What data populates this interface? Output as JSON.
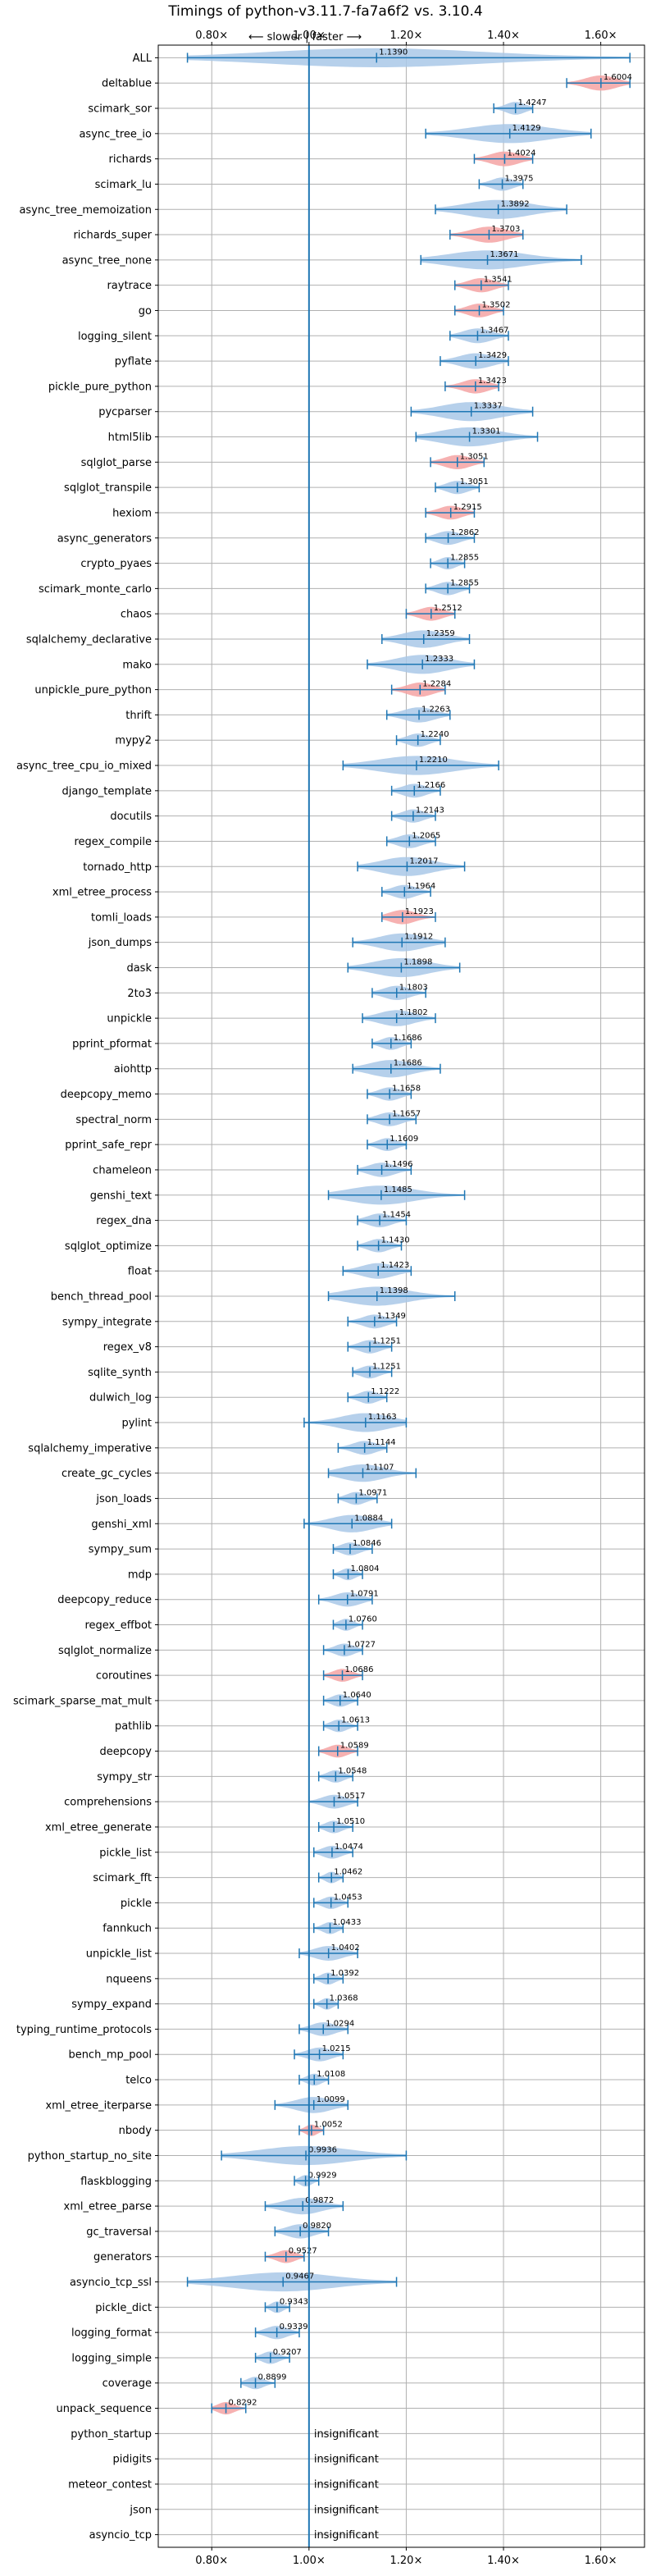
{
  "chart_data": {
    "type": "violin",
    "title": "Timings of python-v3.11.7-fa7a6f2 vs. 3.10.4",
    "direction_label": "⟵ slower | faster ⟶",
    "xlim": [
      0.69,
      1.69
    ],
    "x_ticks": [
      0.8,
      1.0,
      1.2,
      1.4,
      1.6
    ],
    "x_tick_labels": [
      "0.80×",
      "1.00×",
      "1.20×",
      "1.40×",
      "1.60×"
    ],
    "reference_line": 1.0,
    "grid": true,
    "insignificant_label": "insignificant",
    "colors": {
      "normal_fill": "#a9c8e8",
      "highlight_fill": "#f4a3a3",
      "line": "#1f77b4"
    },
    "benchmarks": [
      {
        "name": "ALL",
        "value": 1.139,
        "label": "1.1390",
        "lo": 0.75,
        "hi": 1.66,
        "hl": false
      },
      {
        "name": "deltablue",
        "value": 1.6004,
        "label": "1.6004",
        "lo": 1.53,
        "hi": 1.66,
        "hl": true
      },
      {
        "name": "scimark_sor",
        "value": 1.4247,
        "label": "1.4247",
        "lo": 1.38,
        "hi": 1.46,
        "hl": false
      },
      {
        "name": "async_tree_io",
        "value": 1.4129,
        "label": "1.4129",
        "lo": 1.24,
        "hi": 1.58,
        "hl": false
      },
      {
        "name": "richards",
        "value": 1.4024,
        "label": "1.4024",
        "lo": 1.34,
        "hi": 1.46,
        "hl": true
      },
      {
        "name": "scimark_lu",
        "value": 1.3975,
        "label": "1.3975",
        "lo": 1.35,
        "hi": 1.44,
        "hl": false
      },
      {
        "name": "async_tree_memoization",
        "value": 1.3892,
        "label": "1.3892",
        "lo": 1.26,
        "hi": 1.53,
        "hl": false
      },
      {
        "name": "richards_super",
        "value": 1.3703,
        "label": "1.3703",
        "lo": 1.29,
        "hi": 1.44,
        "hl": true
      },
      {
        "name": "async_tree_none",
        "value": 1.3671,
        "label": "1.3671",
        "lo": 1.23,
        "hi": 1.56,
        "hl": false
      },
      {
        "name": "raytrace",
        "value": 1.3541,
        "label": "1.3541",
        "lo": 1.3,
        "hi": 1.41,
        "hl": true
      },
      {
        "name": "go",
        "value": 1.3502,
        "label": "1.3502",
        "lo": 1.3,
        "hi": 1.4,
        "hl": true
      },
      {
        "name": "logging_silent",
        "value": 1.3467,
        "label": "1.3467",
        "lo": 1.29,
        "hi": 1.41,
        "hl": false
      },
      {
        "name": "pyflate",
        "value": 1.3429,
        "label": "1.3429",
        "lo": 1.27,
        "hi": 1.41,
        "hl": false
      },
      {
        "name": "pickle_pure_python",
        "value": 1.3423,
        "label": "1.3423",
        "lo": 1.28,
        "hi": 1.39,
        "hl": true
      },
      {
        "name": "pycparser",
        "value": 1.3337,
        "label": "1.3337",
        "lo": 1.21,
        "hi": 1.46,
        "hl": false
      },
      {
        "name": "html5lib",
        "value": 1.3301,
        "label": "1.3301",
        "lo": 1.22,
        "hi": 1.47,
        "hl": false
      },
      {
        "name": "sqlglot_parse",
        "value": 1.3051,
        "label": "1.3051",
        "lo": 1.25,
        "hi": 1.36,
        "hl": true
      },
      {
        "name": "sqlglot_transpile",
        "value": 1.3051,
        "label": "1.3051",
        "lo": 1.26,
        "hi": 1.35,
        "hl": false
      },
      {
        "name": "hexiom",
        "value": 1.2915,
        "label": "1.2915",
        "lo": 1.24,
        "hi": 1.34,
        "hl": true
      },
      {
        "name": "async_generators",
        "value": 1.2862,
        "label": "1.2862",
        "lo": 1.24,
        "hi": 1.34,
        "hl": false
      },
      {
        "name": "crypto_pyaes",
        "value": 1.2855,
        "label": "1.2855",
        "lo": 1.25,
        "hi": 1.32,
        "hl": false
      },
      {
        "name": "scimark_monte_carlo",
        "value": 1.2855,
        "label": "1.2855",
        "lo": 1.24,
        "hi": 1.33,
        "hl": false
      },
      {
        "name": "chaos",
        "value": 1.2512,
        "label": "1.2512",
        "lo": 1.2,
        "hi": 1.3,
        "hl": true
      },
      {
        "name": "sqlalchemy_declarative",
        "value": 1.2359,
        "label": "1.2359",
        "lo": 1.15,
        "hi": 1.33,
        "hl": false
      },
      {
        "name": "mako",
        "value": 1.2333,
        "label": "1.2333",
        "lo": 1.12,
        "hi": 1.34,
        "hl": false
      },
      {
        "name": "unpickle_pure_python",
        "value": 1.2284,
        "label": "1.2284",
        "lo": 1.17,
        "hi": 1.28,
        "hl": true
      },
      {
        "name": "thrift",
        "value": 1.2263,
        "label": "1.2263",
        "lo": 1.16,
        "hi": 1.29,
        "hl": false
      },
      {
        "name": "mypy2",
        "value": 1.224,
        "label": "1.2240",
        "lo": 1.18,
        "hi": 1.27,
        "hl": false
      },
      {
        "name": "async_tree_cpu_io_mixed",
        "value": 1.221,
        "label": "1.2210",
        "lo": 1.07,
        "hi": 1.39,
        "hl": false
      },
      {
        "name": "django_template",
        "value": 1.2166,
        "label": "1.2166",
        "lo": 1.17,
        "hi": 1.27,
        "hl": false
      },
      {
        "name": "docutils",
        "value": 1.2143,
        "label": "1.2143",
        "lo": 1.17,
        "hi": 1.26,
        "hl": false
      },
      {
        "name": "regex_compile",
        "value": 1.2065,
        "label": "1.2065",
        "lo": 1.16,
        "hi": 1.26,
        "hl": false
      },
      {
        "name": "tornado_http",
        "value": 1.2017,
        "label": "1.2017",
        "lo": 1.1,
        "hi": 1.32,
        "hl": false
      },
      {
        "name": "xml_etree_process",
        "value": 1.1964,
        "label": "1.1964",
        "lo": 1.15,
        "hi": 1.25,
        "hl": false
      },
      {
        "name": "tomli_loads",
        "value": 1.1923,
        "label": "1.1923",
        "lo": 1.15,
        "hi": 1.26,
        "hl": true
      },
      {
        "name": "json_dumps",
        "value": 1.1912,
        "label": "1.1912",
        "lo": 1.09,
        "hi": 1.28,
        "hl": false
      },
      {
        "name": "dask",
        "value": 1.1898,
        "label": "1.1898",
        "lo": 1.08,
        "hi": 1.31,
        "hl": false
      },
      {
        "name": "2to3",
        "value": 1.1803,
        "label": "1.1803",
        "lo": 1.13,
        "hi": 1.24,
        "hl": false
      },
      {
        "name": "unpickle",
        "value": 1.1802,
        "label": "1.1802",
        "lo": 1.11,
        "hi": 1.26,
        "hl": false
      },
      {
        "name": "pprint_pformat",
        "value": 1.1686,
        "label": "1.1686",
        "lo": 1.13,
        "hi": 1.21,
        "hl": false
      },
      {
        "name": "aiohttp",
        "value": 1.1686,
        "label": "1.1686",
        "lo": 1.09,
        "hi": 1.27,
        "hl": false
      },
      {
        "name": "deepcopy_memo",
        "value": 1.1658,
        "label": "1.1658",
        "lo": 1.12,
        "hi": 1.21,
        "hl": false
      },
      {
        "name": "spectral_norm",
        "value": 1.1657,
        "label": "1.1657",
        "lo": 1.12,
        "hi": 1.22,
        "hl": false
      },
      {
        "name": "pprint_safe_repr",
        "value": 1.1609,
        "label": "1.1609",
        "lo": 1.12,
        "hi": 1.2,
        "hl": false
      },
      {
        "name": "chameleon",
        "value": 1.1496,
        "label": "1.1496",
        "lo": 1.1,
        "hi": 1.21,
        "hl": false
      },
      {
        "name": "genshi_text",
        "value": 1.1485,
        "label": "1.1485",
        "lo": 1.04,
        "hi": 1.32,
        "hl": false
      },
      {
        "name": "regex_dna",
        "value": 1.1454,
        "label": "1.1454",
        "lo": 1.1,
        "hi": 1.2,
        "hl": false
      },
      {
        "name": "sqlglot_optimize",
        "value": 1.143,
        "label": "1.1430",
        "lo": 1.1,
        "hi": 1.19,
        "hl": false
      },
      {
        "name": "float",
        "value": 1.1423,
        "label": "1.1423",
        "lo": 1.07,
        "hi": 1.21,
        "hl": false
      },
      {
        "name": "bench_thread_pool",
        "value": 1.1398,
        "label": "1.1398",
        "lo": 1.04,
        "hi": 1.3,
        "hl": false
      },
      {
        "name": "sympy_integrate",
        "value": 1.1349,
        "label": "1.1349",
        "lo": 1.08,
        "hi": 1.18,
        "hl": false
      },
      {
        "name": "regex_v8",
        "value": 1.1251,
        "label": "1.1251",
        "lo": 1.08,
        "hi": 1.17,
        "hl": false
      },
      {
        "name": "sqlite_synth",
        "value": 1.1251,
        "label": "1.1251",
        "lo": 1.09,
        "hi": 1.17,
        "hl": false
      },
      {
        "name": "dulwich_log",
        "value": 1.1222,
        "label": "1.1222",
        "lo": 1.08,
        "hi": 1.16,
        "hl": false
      },
      {
        "name": "pylint",
        "value": 1.1163,
        "label": "1.1163",
        "lo": 0.99,
        "hi": 1.2,
        "hl": false
      },
      {
        "name": "sqlalchemy_imperative",
        "value": 1.1144,
        "label": "1.1144",
        "lo": 1.06,
        "hi": 1.16,
        "hl": false
      },
      {
        "name": "create_gc_cycles",
        "value": 1.1107,
        "label": "1.1107",
        "lo": 1.04,
        "hi": 1.22,
        "hl": false
      },
      {
        "name": "json_loads",
        "value": 1.0971,
        "label": "1.0971",
        "lo": 1.06,
        "hi": 1.14,
        "hl": false
      },
      {
        "name": "genshi_xml",
        "value": 1.0884,
        "label": "1.0884",
        "lo": 0.99,
        "hi": 1.17,
        "hl": false
      },
      {
        "name": "sympy_sum",
        "value": 1.0846,
        "label": "1.0846",
        "lo": 1.05,
        "hi": 1.13,
        "hl": false
      },
      {
        "name": "mdp",
        "value": 1.0804,
        "label": "1.0804",
        "lo": 1.05,
        "hi": 1.11,
        "hl": false
      },
      {
        "name": "deepcopy_reduce",
        "value": 1.0791,
        "label": "1.0791",
        "lo": 1.02,
        "hi": 1.13,
        "hl": false
      },
      {
        "name": "regex_effbot",
        "value": 1.076,
        "label": "1.0760",
        "lo": 1.05,
        "hi": 1.11,
        "hl": false
      },
      {
        "name": "sqlglot_normalize",
        "value": 1.0727,
        "label": "1.0727",
        "lo": 1.03,
        "hi": 1.11,
        "hl": false
      },
      {
        "name": "coroutines",
        "value": 1.0686,
        "label": "1.0686",
        "lo": 1.03,
        "hi": 1.11,
        "hl": true
      },
      {
        "name": "scimark_sparse_mat_mult",
        "value": 1.064,
        "label": "1.0640",
        "lo": 1.03,
        "hi": 1.1,
        "hl": false
      },
      {
        "name": "pathlib",
        "value": 1.0613,
        "label": "1.0613",
        "lo": 1.03,
        "hi": 1.1,
        "hl": false
      },
      {
        "name": "deepcopy",
        "value": 1.0589,
        "label": "1.0589",
        "lo": 1.02,
        "hi": 1.1,
        "hl": true
      },
      {
        "name": "sympy_str",
        "value": 1.0548,
        "label": "1.0548",
        "lo": 1.02,
        "hi": 1.09,
        "hl": false
      },
      {
        "name": "comprehensions",
        "value": 1.0517,
        "label": "1.0517",
        "lo": 1.0,
        "hi": 1.1,
        "hl": false
      },
      {
        "name": "xml_etree_generate",
        "value": 1.051,
        "label": "1.0510",
        "lo": 1.02,
        "hi": 1.09,
        "hl": false
      },
      {
        "name": "pickle_list",
        "value": 1.0474,
        "label": "1.0474",
        "lo": 1.01,
        "hi": 1.09,
        "hl": false
      },
      {
        "name": "scimark_fft",
        "value": 1.0462,
        "label": "1.0462",
        "lo": 1.02,
        "hi": 1.07,
        "hl": false
      },
      {
        "name": "pickle",
        "value": 1.0453,
        "label": "1.0453",
        "lo": 1.01,
        "hi": 1.08,
        "hl": false
      },
      {
        "name": "fannkuch",
        "value": 1.0433,
        "label": "1.0433",
        "lo": 1.01,
        "hi": 1.07,
        "hl": false
      },
      {
        "name": "unpickle_list",
        "value": 1.0402,
        "label": "1.0402",
        "lo": 0.98,
        "hi": 1.1,
        "hl": false
      },
      {
        "name": "nqueens",
        "value": 1.0392,
        "label": "1.0392",
        "lo": 1.01,
        "hi": 1.07,
        "hl": false
      },
      {
        "name": "sympy_expand",
        "value": 1.0368,
        "label": "1.0368",
        "lo": 1.01,
        "hi": 1.06,
        "hl": false
      },
      {
        "name": "typing_runtime_protocols",
        "value": 1.0294,
        "label": "1.0294",
        "lo": 0.98,
        "hi": 1.08,
        "hl": false
      },
      {
        "name": "bench_mp_pool",
        "value": 1.0215,
        "label": "1.0215",
        "lo": 0.97,
        "hi": 1.07,
        "hl": false
      },
      {
        "name": "telco",
        "value": 1.0108,
        "label": "1.0108",
        "lo": 0.98,
        "hi": 1.04,
        "hl": false
      },
      {
        "name": "xml_etree_iterparse",
        "value": 1.0099,
        "label": "1.0099",
        "lo": 0.93,
        "hi": 1.08,
        "hl": false
      },
      {
        "name": "nbody",
        "value": 1.0052,
        "label": "1.0052",
        "lo": 0.98,
        "hi": 1.03,
        "hl": true
      },
      {
        "name": "python_startup_no_site",
        "value": 0.9936,
        "label": "0.9936",
        "lo": 0.82,
        "hi": 1.2,
        "hl": false
      },
      {
        "name": "flaskblogging",
        "value": 0.9929,
        "label": "0.9929",
        "lo": 0.97,
        "hi": 1.02,
        "hl": false
      },
      {
        "name": "xml_etree_parse",
        "value": 0.9872,
        "label": "0.9872",
        "lo": 0.91,
        "hi": 1.07,
        "hl": false
      },
      {
        "name": "gc_traversal",
        "value": 0.982,
        "label": "0.9820",
        "lo": 0.93,
        "hi": 1.04,
        "hl": false
      },
      {
        "name": "generators",
        "value": 0.9527,
        "label": "0.9527",
        "lo": 0.91,
        "hi": 0.99,
        "hl": true
      },
      {
        "name": "asyncio_tcp_ssl",
        "value": 0.9467,
        "label": "0.9467",
        "lo": 0.75,
        "hi": 1.18,
        "hl": false
      },
      {
        "name": "pickle_dict",
        "value": 0.9343,
        "label": "0.9343",
        "lo": 0.91,
        "hi": 0.96,
        "hl": false
      },
      {
        "name": "logging_format",
        "value": 0.9339,
        "label": "0.9339",
        "lo": 0.89,
        "hi": 0.98,
        "hl": false
      },
      {
        "name": "logging_simple",
        "value": 0.9207,
        "label": "0.9207",
        "lo": 0.89,
        "hi": 0.96,
        "hl": false
      },
      {
        "name": "coverage",
        "value": 0.8899,
        "label": "0.8899",
        "lo": 0.86,
        "hi": 0.93,
        "hl": false
      },
      {
        "name": "unpack_sequence",
        "value": 0.8292,
        "label": "0.8292",
        "lo": 0.8,
        "hi": 0.87,
        "hl": true
      },
      {
        "name": "python_startup",
        "value": null,
        "label": "",
        "lo": null,
        "hi": null,
        "hl": false
      },
      {
        "name": "pidigits",
        "value": null,
        "label": "",
        "lo": null,
        "hi": null,
        "hl": false
      },
      {
        "name": "meteor_contest",
        "value": null,
        "label": "",
        "lo": null,
        "hi": null,
        "hl": false
      },
      {
        "name": "json",
        "value": null,
        "label": "",
        "lo": null,
        "hi": null,
        "hl": false
      },
      {
        "name": "asyncio_tcp",
        "value": null,
        "label": "",
        "lo": null,
        "hi": null,
        "hl": false
      }
    ]
  }
}
